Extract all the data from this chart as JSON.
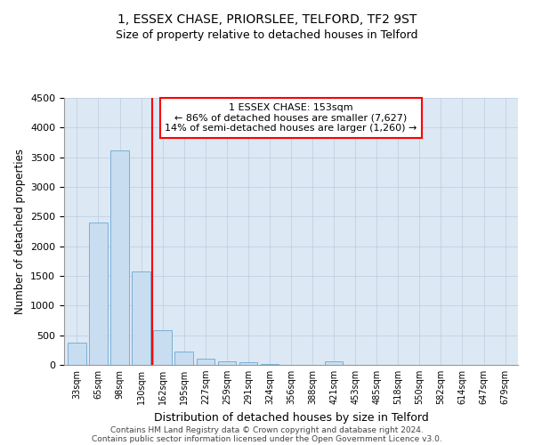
{
  "title": "1, ESSEX CHASE, PRIORSLEE, TELFORD, TF2 9ST",
  "subtitle": "Size of property relative to detached houses in Telford",
  "xlabel": "Distribution of detached houses by size in Telford",
  "ylabel": "Number of detached properties",
  "categories": [
    "33sqm",
    "65sqm",
    "98sqm",
    "130sqm",
    "162sqm",
    "195sqm",
    "227sqm",
    "259sqm",
    "291sqm",
    "324sqm",
    "356sqm",
    "388sqm",
    "421sqm",
    "453sqm",
    "485sqm",
    "518sqm",
    "550sqm",
    "582sqm",
    "614sqm",
    "647sqm",
    "679sqm"
  ],
  "values": [
    370,
    2400,
    3620,
    1580,
    590,
    230,
    105,
    65,
    38,
    18,
    0,
    0,
    55,
    0,
    0,
    0,
    0,
    0,
    0,
    0,
    0
  ],
  "bar_color": "#c8ddf0",
  "bar_edge_color": "#7aafd4",
  "vline_color": "red",
  "vline_pos": 3.5,
  "annotation_title": "1 ESSEX CHASE: 153sqm",
  "annotation_line1": "← 86% of detached houses are smaller (7,627)",
  "annotation_line2": "14% of semi-detached houses are larger (1,260) →",
  "ylim": [
    0,
    4500
  ],
  "yticks": [
    0,
    500,
    1000,
    1500,
    2000,
    2500,
    3000,
    3500,
    4000,
    4500
  ],
  "background_color": "#dde8f5",
  "grid_color": "#bbccdd",
  "footer_line1": "Contains HM Land Registry data © Crown copyright and database right 2024.",
  "footer_line2": "Contains public sector information licensed under the Open Government Licence v3.0."
}
